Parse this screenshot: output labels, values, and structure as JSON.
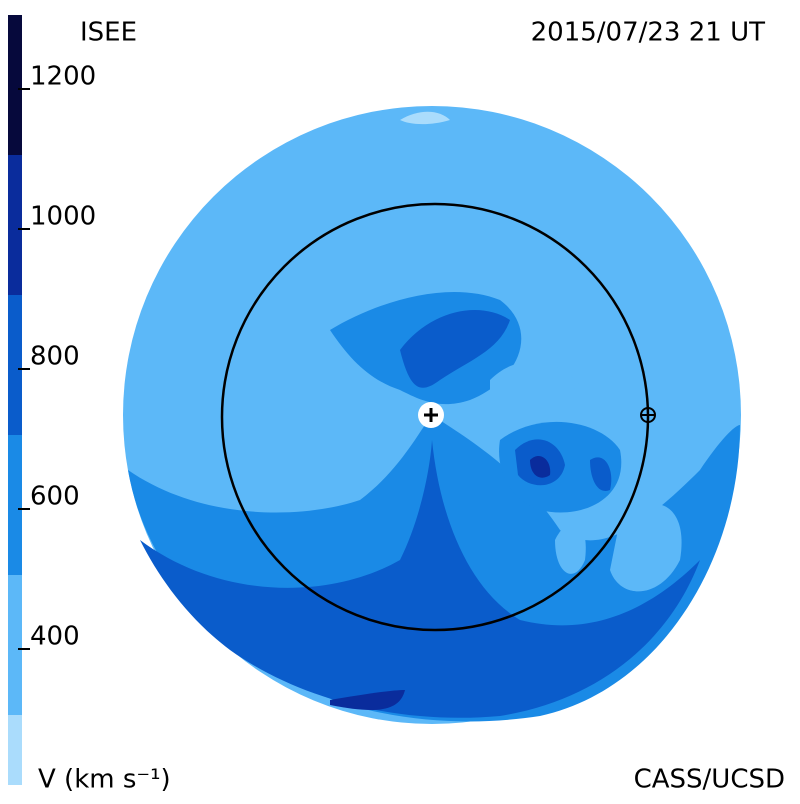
{
  "header": {
    "title": "ISEE",
    "date": "2015/07/23 21 UT",
    "credit": "CASS/UCSD"
  },
  "colorbar": {
    "label": "V (km s⁻¹)",
    "lim": [
      200,
      1300
    ],
    "ticks": [
      400,
      600,
      800,
      1000,
      1200
    ],
    "levels": [
      200,
      300,
      500,
      700,
      900,
      1100,
      1300
    ],
    "colors": [
      "#aadcfc",
      "#5cb8f8",
      "#1a8ae6",
      "#0a5ccb",
      "#0a2c9c",
      "#06093c"
    ]
  }
}
